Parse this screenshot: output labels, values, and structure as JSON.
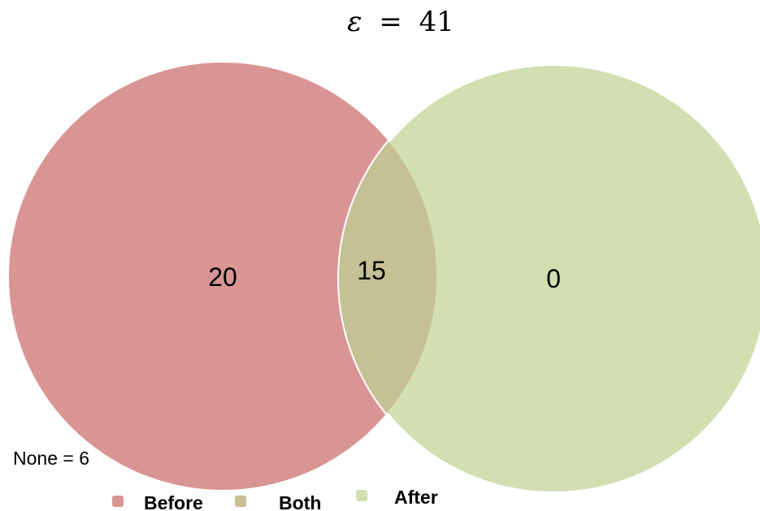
{
  "title": {
    "symbol": "ε",
    "operator": "=",
    "value": "41"
  },
  "sets": [
    {
      "key": "before",
      "label": "Before",
      "color": "#d99594"
    },
    {
      "key": "after",
      "label": "After",
      "color": "#d2dfb1"
    }
  ],
  "intersection": {
    "label": "Both",
    "color": "#c6c095"
  },
  "counts": {
    "before_only": "20",
    "both": "15",
    "after_only": "0"
  },
  "none_text": "None = 6",
  "legend": [
    {
      "label": "Before",
      "color": "#d99594"
    },
    {
      "label": "Both",
      "color": "#c6c095"
    },
    {
      "label": "After",
      "color": "#d2dfb1"
    }
  ]
}
